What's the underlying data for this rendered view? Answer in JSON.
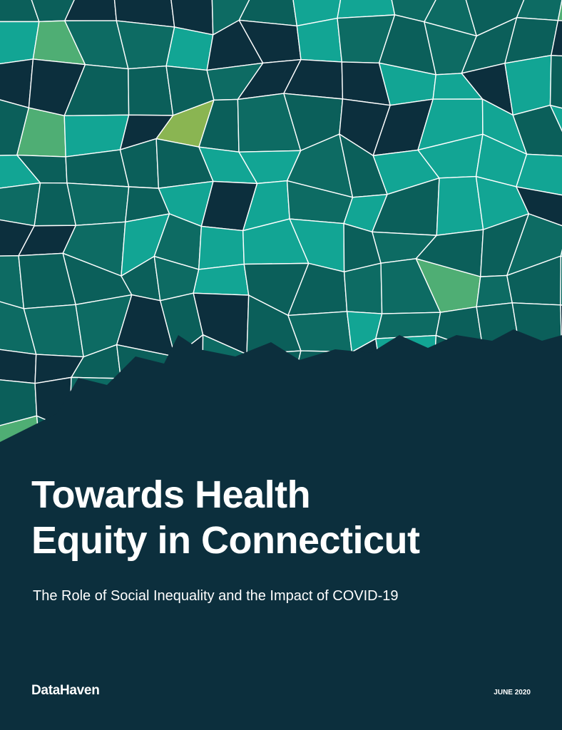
{
  "cover": {
    "title_line1": "Towards Health",
    "title_line2": "Equity in Connecticut",
    "subtitle": "The Role of Social Inequality and the Impact of COVID-19",
    "publisher": "DataHaven",
    "date": "JUNE 2020"
  },
  "colors": {
    "background": "#0c2f3d",
    "map_palette": [
      "#0c2f3d",
      "#0b5f5a",
      "#0d6b63",
      "#12a594",
      "#4fae74",
      "#8ab552"
    ],
    "border": "#ffffff"
  }
}
